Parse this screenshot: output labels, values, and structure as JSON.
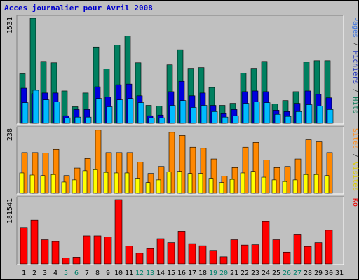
{
  "title": "Acces journalier pour Avril 2008",
  "legend": {
    "top": [
      {
        "text": "Pages",
        "color": "#4477dd"
      },
      {
        "text": " / ",
        "color": "#333333"
      },
      {
        "text": "Fichiers",
        "color": "#2233bb"
      },
      {
        "text": " / ",
        "color": "#333333"
      },
      {
        "text": "Hits",
        "color": "#1a8060"
      }
    ],
    "middle": [
      {
        "text": "Sites",
        "color": "#ff8c1a"
      },
      {
        "text": " / ",
        "color": "#333333"
      },
      {
        "text": "Visites",
        "color": "#ddcc00"
      }
    ],
    "bottom": [
      {
        "text": "Ko",
        "color": "#ee0000"
      }
    ]
  },
  "colors": {
    "frame": "#c0c0c0",
    "plot": "#c0c0c0",
    "hits": "#008060",
    "files": "#0000dd",
    "pages": "#00bbff",
    "sites": "#ff8800",
    "visits": "#ffff00",
    "kbytes": "#ff0000",
    "weekday_label": "#000000",
    "weekend_label": "#00806a"
  },
  "chart_data": [
    {
      "type": "bar",
      "ymax_label": "1531",
      "ylim": [
        0,
        1531
      ],
      "series": [
        {
          "name": "Hits",
          "values": [
            720,
            1531,
            900,
            880,
            470,
            240,
            440,
            1110,
            790,
            1140,
            1270,
            880,
            260,
            250,
            850,
            1070,
            800,
            810,
            520,
            260,
            290,
            730,
            800,
            900,
            280,
            330,
            460,
            890,
            910,
            910
          ]
        },
        {
          "name": "Fichiers",
          "values": [
            510,
            430,
            440,
            440,
            110,
            200,
            200,
            530,
            380,
            560,
            570,
            400,
            110,
            120,
            460,
            610,
            400,
            440,
            260,
            140,
            200,
            460,
            470,
            460,
            190,
            170,
            290,
            470,
            420,
            370
          ]
        },
        {
          "name": "Pages",
          "values": [
            300,
            480,
            340,
            310,
            80,
            90,
            90,
            360,
            240,
            340,
            360,
            300,
            80,
            80,
            260,
            330,
            230,
            260,
            170,
            90,
            110,
            290,
            310,
            300,
            130,
            100,
            170,
            270,
            250,
            200
          ]
        }
      ]
    },
    {
      "type": "bar",
      "ymax_label": "238",
      "ylim": [
        0,
        238
      ],
      "series": [
        {
          "name": "Sites",
          "values": [
            152,
            152,
            150,
            164,
            66,
            94,
            130,
            236,
            152,
            152,
            152,
            116,
            74,
            100,
            228,
            216,
            172,
            168,
            128,
            64,
            96,
            172,
            190,
            124,
            96,
            100,
            128,
            200,
            192,
            152
          ]
        },
        {
          "name": "Visites",
          "values": [
            76,
            68,
            66,
            70,
            42,
            50,
            84,
            88,
            78,
            76,
            76,
            56,
            40,
            50,
            80,
            82,
            74,
            74,
            56,
            40,
            52,
            76,
            82,
            60,
            50,
            44,
            50,
            70,
            70,
            66
          ]
        }
      ]
    },
    {
      "type": "bar",
      "ymax_label": "181541",
      "ylim": [
        0,
        181541
      ],
      "series": [
        {
          "name": "Ko",
          "values": [
            103000,
            124000,
            68000,
            63000,
            17000,
            19000,
            79000,
            79000,
            76000,
            181541,
            50000,
            30000,
            43000,
            71000,
            60000,
            92000,
            57000,
            51000,
            38000,
            20000,
            68000,
            53000,
            54000,
            120000,
            68000,
            33000,
            84000,
            49000,
            60000,
            95000
          ]
        }
      ]
    }
  ],
  "x_labels": [
    {
      "text": "1",
      "weekend": false
    },
    {
      "text": "2",
      "weekend": false
    },
    {
      "text": "3",
      "weekend": false
    },
    {
      "text": "4",
      "weekend": false
    },
    {
      "text": "5",
      "weekend": true
    },
    {
      "text": "6",
      "weekend": true
    },
    {
      "text": "7",
      "weekend": false
    },
    {
      "text": "8",
      "weekend": false
    },
    {
      "text": "9",
      "weekend": false
    },
    {
      "text": "10",
      "weekend": false
    },
    {
      "text": "11",
      "weekend": false
    },
    {
      "text": "12",
      "weekend": true
    },
    {
      "text": "13",
      "weekend": true
    },
    {
      "text": "14",
      "weekend": false
    },
    {
      "text": "15",
      "weekend": false
    },
    {
      "text": "16",
      "weekend": false
    },
    {
      "text": "17",
      "weekend": false
    },
    {
      "text": "18",
      "weekend": false
    },
    {
      "text": "19",
      "weekend": true
    },
    {
      "text": "20",
      "weekend": true
    },
    {
      "text": "21",
      "weekend": false
    },
    {
      "text": "22",
      "weekend": false
    },
    {
      "text": "23",
      "weekend": false
    },
    {
      "text": "24",
      "weekend": false
    },
    {
      "text": "25",
      "weekend": false
    },
    {
      "text": "26",
      "weekend": true
    },
    {
      "text": "27",
      "weekend": true
    },
    {
      "text": "28",
      "weekend": false
    },
    {
      "text": "29",
      "weekend": false
    },
    {
      "text": "30",
      "weekend": false
    },
    {
      "text": "31",
      "weekend": false
    }
  ]
}
